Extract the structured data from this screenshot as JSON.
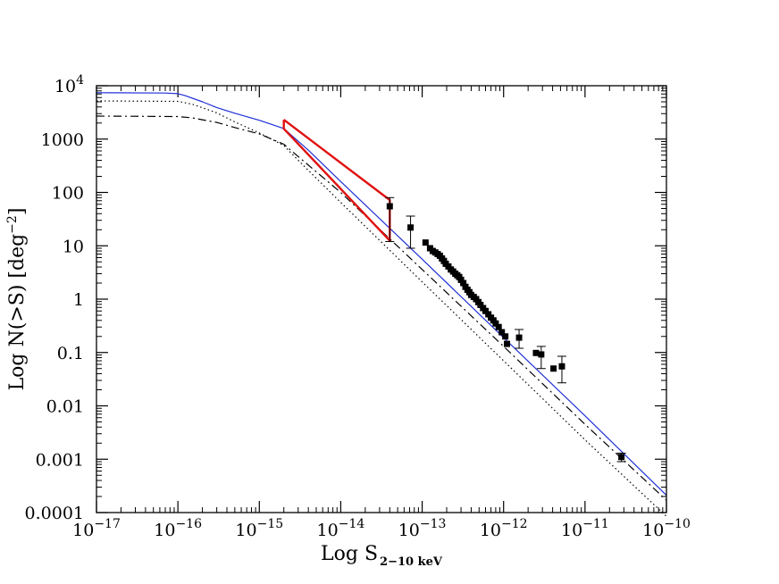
{
  "chart_data": {
    "type": "scatter",
    "title": "",
    "xlabel": "Log S",
    "xlabel_subscript": "2−10 keV",
    "ylabel": "Log N(>S) [deg",
    "ylabel_superscript": "−2",
    "ylabel_close": "]",
    "x_scale": "log",
    "y_scale": "log",
    "xlim": [
      1e-17,
      1e-10
    ],
    "ylim": [
      0.0001,
      10000
    ],
    "grid": false,
    "legend": "none",
    "x_ticks": [
      {
        "value": 1e-17,
        "base": "10",
        "exp": "−17"
      },
      {
        "value": 1e-16,
        "base": "10",
        "exp": "−16"
      },
      {
        "value": 1e-15,
        "base": "10",
        "exp": "−15"
      },
      {
        "value": 1e-14,
        "base": "10",
        "exp": "−14"
      },
      {
        "value": 1e-13,
        "base": "10",
        "exp": "−13"
      },
      {
        "value": 1e-12,
        "base": "10",
        "exp": "−12"
      },
      {
        "value": 1e-11,
        "base": "10",
        "exp": "−11"
      },
      {
        "value": 1e-10,
        "base": "10",
        "exp": "−10"
      }
    ],
    "y_ticks": [
      {
        "value": 0.0001,
        "base": "0.0001",
        "exp": ""
      },
      {
        "value": 0.001,
        "base": "0.001",
        "exp": ""
      },
      {
        "value": 0.01,
        "base": "0.01",
        "exp": ""
      },
      {
        "value": 0.1,
        "base": "0.1",
        "exp": ""
      },
      {
        "value": 1,
        "base": "1",
        "exp": ""
      },
      {
        "value": 10,
        "base": "10",
        "exp": ""
      },
      {
        "value": 100,
        "base": "100",
        "exp": ""
      },
      {
        "value": 1000,
        "base": "1000",
        "exp": ""
      },
      {
        "value": 10000,
        "base": "10",
        "exp": "4"
      }
    ],
    "series": [
      {
        "style": "solid",
        "color": "#1f2fd6",
        "x": [
          1e-17,
          7e-17,
          1e-16,
          1.2e-16,
          2e-16,
          3e-16,
          5e-16,
          1e-15,
          2e-15,
          4e-15,
          1e-14,
          1e-13,
          1e-12,
          1e-11,
          1e-10
        ],
        "y": [
          7400,
          7300,
          7100,
          6600,
          5000,
          3900,
          3050,
          2250,
          1580,
          620,
          160,
          5.6,
          0.19,
          0.0065,
          0.00021
        ]
      },
      {
        "style": "dotted",
        "color": "#000000",
        "x": [
          1e-17,
          1e-16,
          1.5e-16,
          3e-16,
          5e-16,
          1e-15,
          2e-15,
          3e-15,
          1e-14,
          1e-13,
          1e-12,
          1e-11,
          1e-10
        ],
        "y": [
          5200,
          5100,
          4500,
          3100,
          2100,
          1300,
          760,
          400,
          65,
          2.1,
          0.07,
          0.0023,
          8.5e-05
        ]
      },
      {
        "style": "dashdot",
        "color": "#000000",
        "x": [
          1e-17,
          1e-16,
          1.5e-16,
          3e-16,
          5e-16,
          1e-15,
          2e-15,
          3e-15,
          1e-14,
          1e-13,
          1e-12,
          1e-11,
          1e-10
        ],
        "y": [
          2700,
          2650,
          2500,
          2050,
          1650,
          1250,
          800,
          470,
          100,
          3.6,
          0.13,
          0.0045,
          0.00017
        ]
      },
      {
        "style": "wedge",
        "color": "#e01010",
        "x": [
          2e-15,
          4e-14,
          4e-14,
          2e-15,
          2e-15
        ],
        "y": [
          2300,
          72,
          12.5,
          1560,
          2300
        ]
      }
    ],
    "points": [
      {
        "x": 4e-14,
        "y": 55,
        "yerr_low": 12,
        "yerr_high": 80
      },
      {
        "x": 7.2e-14,
        "y": 22,
        "yerr_low": 9,
        "yerr_high": 36
      },
      {
        "x": 1.1e-13,
        "y": 11.5
      },
      {
        "x": 1.25e-13,
        "y": 9
      },
      {
        "x": 1.35e-13,
        "y": 8
      },
      {
        "x": 1.45e-13,
        "y": 7.5
      },
      {
        "x": 1.55e-13,
        "y": 7
      },
      {
        "x": 1.65e-13,
        "y": 6.5
      },
      {
        "x": 1.75e-13,
        "y": 5.8
      },
      {
        "x": 1.85e-13,
        "y": 5.2
      },
      {
        "x": 1.95e-13,
        "y": 4.6
      },
      {
        "x": 2.1e-13,
        "y": 4.1
      },
      {
        "x": 2.25e-13,
        "y": 3.6
      },
      {
        "x": 2.4e-13,
        "y": 3.3
      },
      {
        "x": 2.55e-13,
        "y": 3.0
      },
      {
        "x": 2.7e-13,
        "y": 2.8
      },
      {
        "x": 2.85e-13,
        "y": 2.6
      },
      {
        "x": 3e-13,
        "y": 2.3
      },
      {
        "x": 3.2e-13,
        "y": 2.0
      },
      {
        "x": 3.4e-13,
        "y": 1.7
      },
      {
        "x": 3.6e-13,
        "y": 1.5
      },
      {
        "x": 3.8e-13,
        "y": 1.35
      },
      {
        "x": 4e-13,
        "y": 1.2
      },
      {
        "x": 4.3e-13,
        "y": 1.1
      },
      {
        "x": 4.6e-13,
        "y": 1.0
      },
      {
        "x": 4.9e-13,
        "y": 0.88
      },
      {
        "x": 5.2e-13,
        "y": 0.78
      },
      {
        "x": 5.6e-13,
        "y": 0.68
      },
      {
        "x": 6e-13,
        "y": 0.6
      },
      {
        "x": 6.5e-13,
        "y": 0.52
      },
      {
        "x": 7e-13,
        "y": 0.45
      },
      {
        "x": 7.5e-13,
        "y": 0.4
      },
      {
        "x": 8e-13,
        "y": 0.35
      },
      {
        "x": 8.7e-13,
        "y": 0.3
      },
      {
        "x": 9.5e-13,
        "y": 0.24
      },
      {
        "x": 1.05e-12,
        "y": 0.2
      },
      {
        "x": 1.1e-12,
        "y": 0.145
      },
      {
        "x": 1.55e-12,
        "y": 0.19,
        "yerr_low": 0.12,
        "yerr_high": 0.27
      },
      {
        "x": 2.5e-12,
        "y": 0.098
      },
      {
        "x": 2.9e-12,
        "y": 0.092,
        "yerr_low": 0.05,
        "yerr_high": 0.13
      },
      {
        "x": 4.1e-12,
        "y": 0.05
      },
      {
        "x": 5.2e-12,
        "y": 0.055,
        "yerr_low": 0.027,
        "yerr_high": 0.085
      },
      {
        "x": 2.8e-11,
        "y": 0.0011,
        "yerr_low": 0.0009,
        "yerr_high": 0.0013
      }
    ]
  }
}
